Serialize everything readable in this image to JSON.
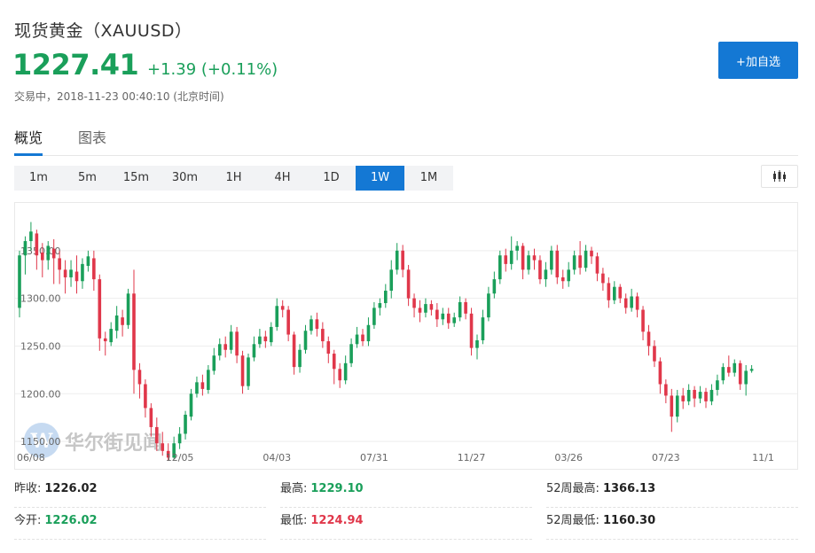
{
  "header": {
    "title": "现货黄金（XAUUSD）",
    "price": "1227.41",
    "change": "+1.39 (+0.11%)",
    "status": "交易中，2018-11-23 00:40:10 (北京时间)",
    "add_button": "+加自选"
  },
  "tabs": [
    "概览",
    "图表"
  ],
  "periods": [
    "1m",
    "5m",
    "15m",
    "30m",
    "1H",
    "4H",
    "1D",
    "1W",
    "1M"
  ],
  "active_period": "1W",
  "watermark": "华尔街见闻",
  "colors": {
    "up": "#1a9f5a",
    "down": "#e0374a",
    "accent": "#1478d4"
  },
  "stats": {
    "prev_close_label": "昨收:",
    "prev_close": "1226.02",
    "high_label": "最高:",
    "high": "1229.10",
    "w52_high_label": "52周最高:",
    "w52_high": "1366.13",
    "open_label": "今开:",
    "open": "1226.02",
    "low_label": "最低:",
    "low": "1224.94",
    "w52_low_label": "52周最低:",
    "w52_low": "1160.30"
  },
  "chart_data": {
    "type": "candlestick",
    "interval": "1W",
    "y_ticks": [
      "1350.00",
      "1300.00",
      "1250.00",
      "1200.00",
      "1150.00"
    ],
    "y_range": [
      1138,
      1400
    ],
    "x_labels": [
      {
        "label": "06/08",
        "index": 2
      },
      {
        "label": "12/05",
        "index": 28
      },
      {
        "label": "04/03",
        "index": 45
      },
      {
        "label": "07/31",
        "index": 62
      },
      {
        "label": "11/27",
        "index": 79
      },
      {
        "label": "03/26",
        "index": 96
      },
      {
        "label": "07/23",
        "index": 113
      },
      {
        "label": "11/1",
        "index": 130
      }
    ],
    "candles": [
      [
        1290,
        1345,
        1280,
        1350
      ],
      [
        1345,
        1360,
        1325,
        1365
      ],
      [
        1360,
        1370,
        1350,
        1380
      ],
      [
        1368,
        1345,
        1330,
        1372
      ],
      [
        1348,
        1340,
        1322,
        1358
      ],
      [
        1340,
        1355,
        1330,
        1360
      ],
      [
        1352,
        1342,
        1315,
        1362
      ],
      [
        1342,
        1330,
        1315,
        1350
      ],
      [
        1330,
        1322,
        1305,
        1340
      ],
      [
        1322,
        1330,
        1312,
        1340
      ],
      [
        1328,
        1318,
        1305,
        1345
      ],
      [
        1318,
        1336,
        1310,
        1342
      ],
      [
        1334,
        1344,
        1328,
        1350
      ],
      [
        1342,
        1320,
        1308,
        1350
      ],
      [
        1320,
        1258,
        1245,
        1325
      ],
      [
        1258,
        1255,
        1240,
        1265
      ],
      [
        1254,
        1268,
        1250,
        1275
      ],
      [
        1266,
        1282,
        1258,
        1292
      ],
      [
        1280,
        1272,
        1260,
        1288
      ],
      [
        1272,
        1305,
        1268,
        1310
      ],
      [
        1305,
        1225,
        1200,
        1330
      ],
      [
        1225,
        1210,
        1195,
        1232
      ],
      [
        1210,
        1185,
        1175,
        1215
      ],
      [
        1185,
        1165,
        1155,
        1190
      ],
      [
        1165,
        1148,
        1140,
        1175
      ],
      [
        1148,
        1140,
        1135,
        1160
      ],
      [
        1140,
        1133,
        1130,
        1148
      ],
      [
        1133,
        1148,
        1132,
        1155
      ],
      [
        1148,
        1158,
        1142,
        1165
      ],
      [
        1158,
        1178,
        1152,
        1182
      ],
      [
        1176,
        1200,
        1172,
        1205
      ],
      [
        1200,
        1212,
        1196,
        1218
      ],
      [
        1212,
        1205,
        1198,
        1220
      ],
      [
        1204,
        1225,
        1200,
        1230
      ],
      [
        1224,
        1240,
        1220,
        1248
      ],
      [
        1240,
        1252,
        1235,
        1258
      ],
      [
        1252,
        1246,
        1238,
        1260
      ],
      [
        1246,
        1265,
        1242,
        1272
      ],
      [
        1265,
        1240,
        1232,
        1270
      ],
      [
        1240,
        1208,
        1200,
        1245
      ],
      [
        1208,
        1238,
        1204,
        1242
      ],
      [
        1238,
        1252,
        1234,
        1260
      ],
      [
        1252,
        1260,
        1248,
        1268
      ],
      [
        1260,
        1255,
        1248,
        1266
      ],
      [
        1254,
        1270,
        1250,
        1275
      ],
      [
        1270,
        1292,
        1266,
        1300
      ],
      [
        1292,
        1288,
        1280,
        1298
      ],
      [
        1288,
        1262,
        1255,
        1292
      ],
      [
        1262,
        1228,
        1220,
        1265
      ],
      [
        1228,
        1246,
        1222,
        1252
      ],
      [
        1246,
        1266,
        1242,
        1272
      ],
      [
        1266,
        1278,
        1262,
        1282
      ],
      [
        1278,
        1268,
        1260,
        1285
      ],
      [
        1268,
        1255,
        1248,
        1275
      ],
      [
        1255,
        1242,
        1232,
        1260
      ],
      [
        1242,
        1226,
        1210,
        1246
      ],
      [
        1226,
        1214,
        1206,
        1232
      ],
      [
        1214,
        1232,
        1210,
        1240
      ],
      [
        1232,
        1252,
        1228,
        1258
      ],
      [
        1252,
        1262,
        1248,
        1270
      ],
      [
        1262,
        1255,
        1250,
        1268
      ],
      [
        1255,
        1272,
        1250,
        1280
      ],
      [
        1272,
        1290,
        1268,
        1296
      ],
      [
        1290,
        1295,
        1282,
        1300
      ],
      [
        1295,
        1308,
        1290,
        1315
      ],
      [
        1308,
        1330,
        1300,
        1340
      ],
      [
        1330,
        1350,
        1325,
        1358
      ],
      [
        1350,
        1330,
        1322,
        1356
      ],
      [
        1330,
        1300,
        1292,
        1335
      ],
      [
        1300,
        1290,
        1280,
        1305
      ],
      [
        1290,
        1285,
        1275,
        1298
      ],
      [
        1285,
        1294,
        1280,
        1300
      ],
      [
        1294,
        1288,
        1282,
        1298
      ],
      [
        1288,
        1278,
        1270,
        1295
      ],
      [
        1278,
        1284,
        1272,
        1290
      ],
      [
        1284,
        1274,
        1268,
        1290
      ],
      [
        1274,
        1280,
        1270,
        1285
      ],
      [
        1280,
        1296,
        1276,
        1302
      ],
      [
        1296,
        1284,
        1278,
        1300
      ],
      [
        1284,
        1248,
        1240,
        1290
      ],
      [
        1248,
        1256,
        1236,
        1262
      ],
      [
        1256,
        1280,
        1252,
        1288
      ],
      [
        1280,
        1305,
        1276,
        1312
      ],
      [
        1305,
        1320,
        1300,
        1328
      ],
      [
        1320,
        1345,
        1315,
        1350
      ],
      [
        1345,
        1336,
        1328,
        1352
      ],
      [
        1336,
        1350,
        1330,
        1365
      ],
      [
        1350,
        1355,
        1340,
        1360
      ],
      [
        1355,
        1330,
        1320,
        1358
      ],
      [
        1330,
        1345,
        1325,
        1350
      ],
      [
        1345,
        1340,
        1330,
        1352
      ],
      [
        1340,
        1320,
        1315,
        1345
      ],
      [
        1320,
        1330,
        1312,
        1338
      ],
      [
        1330,
        1350,
        1325,
        1355
      ],
      [
        1350,
        1322,
        1315,
        1356
      ],
      [
        1322,
        1318,
        1310,
        1330
      ],
      [
        1318,
        1330,
        1312,
        1338
      ],
      [
        1330,
        1345,
        1325,
        1350
      ],
      [
        1345,
        1332,
        1325,
        1360
      ],
      [
        1332,
        1350,
        1328,
        1356
      ],
      [
        1350,
        1344,
        1336,
        1354
      ],
      [
        1344,
        1326,
        1318,
        1348
      ],
      [
        1326,
        1316,
        1308,
        1332
      ],
      [
        1316,
        1298,
        1290,
        1322
      ],
      [
        1298,
        1312,
        1294,
        1318
      ],
      [
        1312,
        1300,
        1295,
        1315
      ],
      [
        1300,
        1290,
        1284,
        1305
      ],
      [
        1290,
        1302,
        1286,
        1310
      ],
      [
        1302,
        1288,
        1280,
        1306
      ],
      [
        1288,
        1265,
        1256,
        1292
      ],
      [
        1265,
        1250,
        1240,
        1272
      ],
      [
        1250,
        1234,
        1228,
        1256
      ],
      [
        1234,
        1210,
        1200,
        1238
      ],
      [
        1210,
        1198,
        1190,
        1215
      ],
      [
        1198,
        1176,
        1160,
        1205
      ],
      [
        1176,
        1198,
        1170,
        1204
      ],
      [
        1198,
        1192,
        1184,
        1206
      ],
      [
        1192,
        1204,
        1188,
        1210
      ],
      [
        1204,
        1195,
        1186,
        1208
      ],
      [
        1195,
        1202,
        1190,
        1208
      ],
      [
        1202,
        1192,
        1185,
        1206
      ],
      [
        1192,
        1204,
        1188,
        1210
      ],
      [
        1204,
        1214,
        1198,
        1220
      ],
      [
        1214,
        1228,
        1210,
        1232
      ],
      [
        1228,
        1222,
        1218,
        1240
      ],
      [
        1222,
        1232,
        1218,
        1236
      ],
      [
        1232,
        1210,
        1204,
        1235
      ],
      [
        1210,
        1224,
        1198,
        1230
      ],
      [
        1224,
        1226,
        1222,
        1230
      ]
    ]
  }
}
